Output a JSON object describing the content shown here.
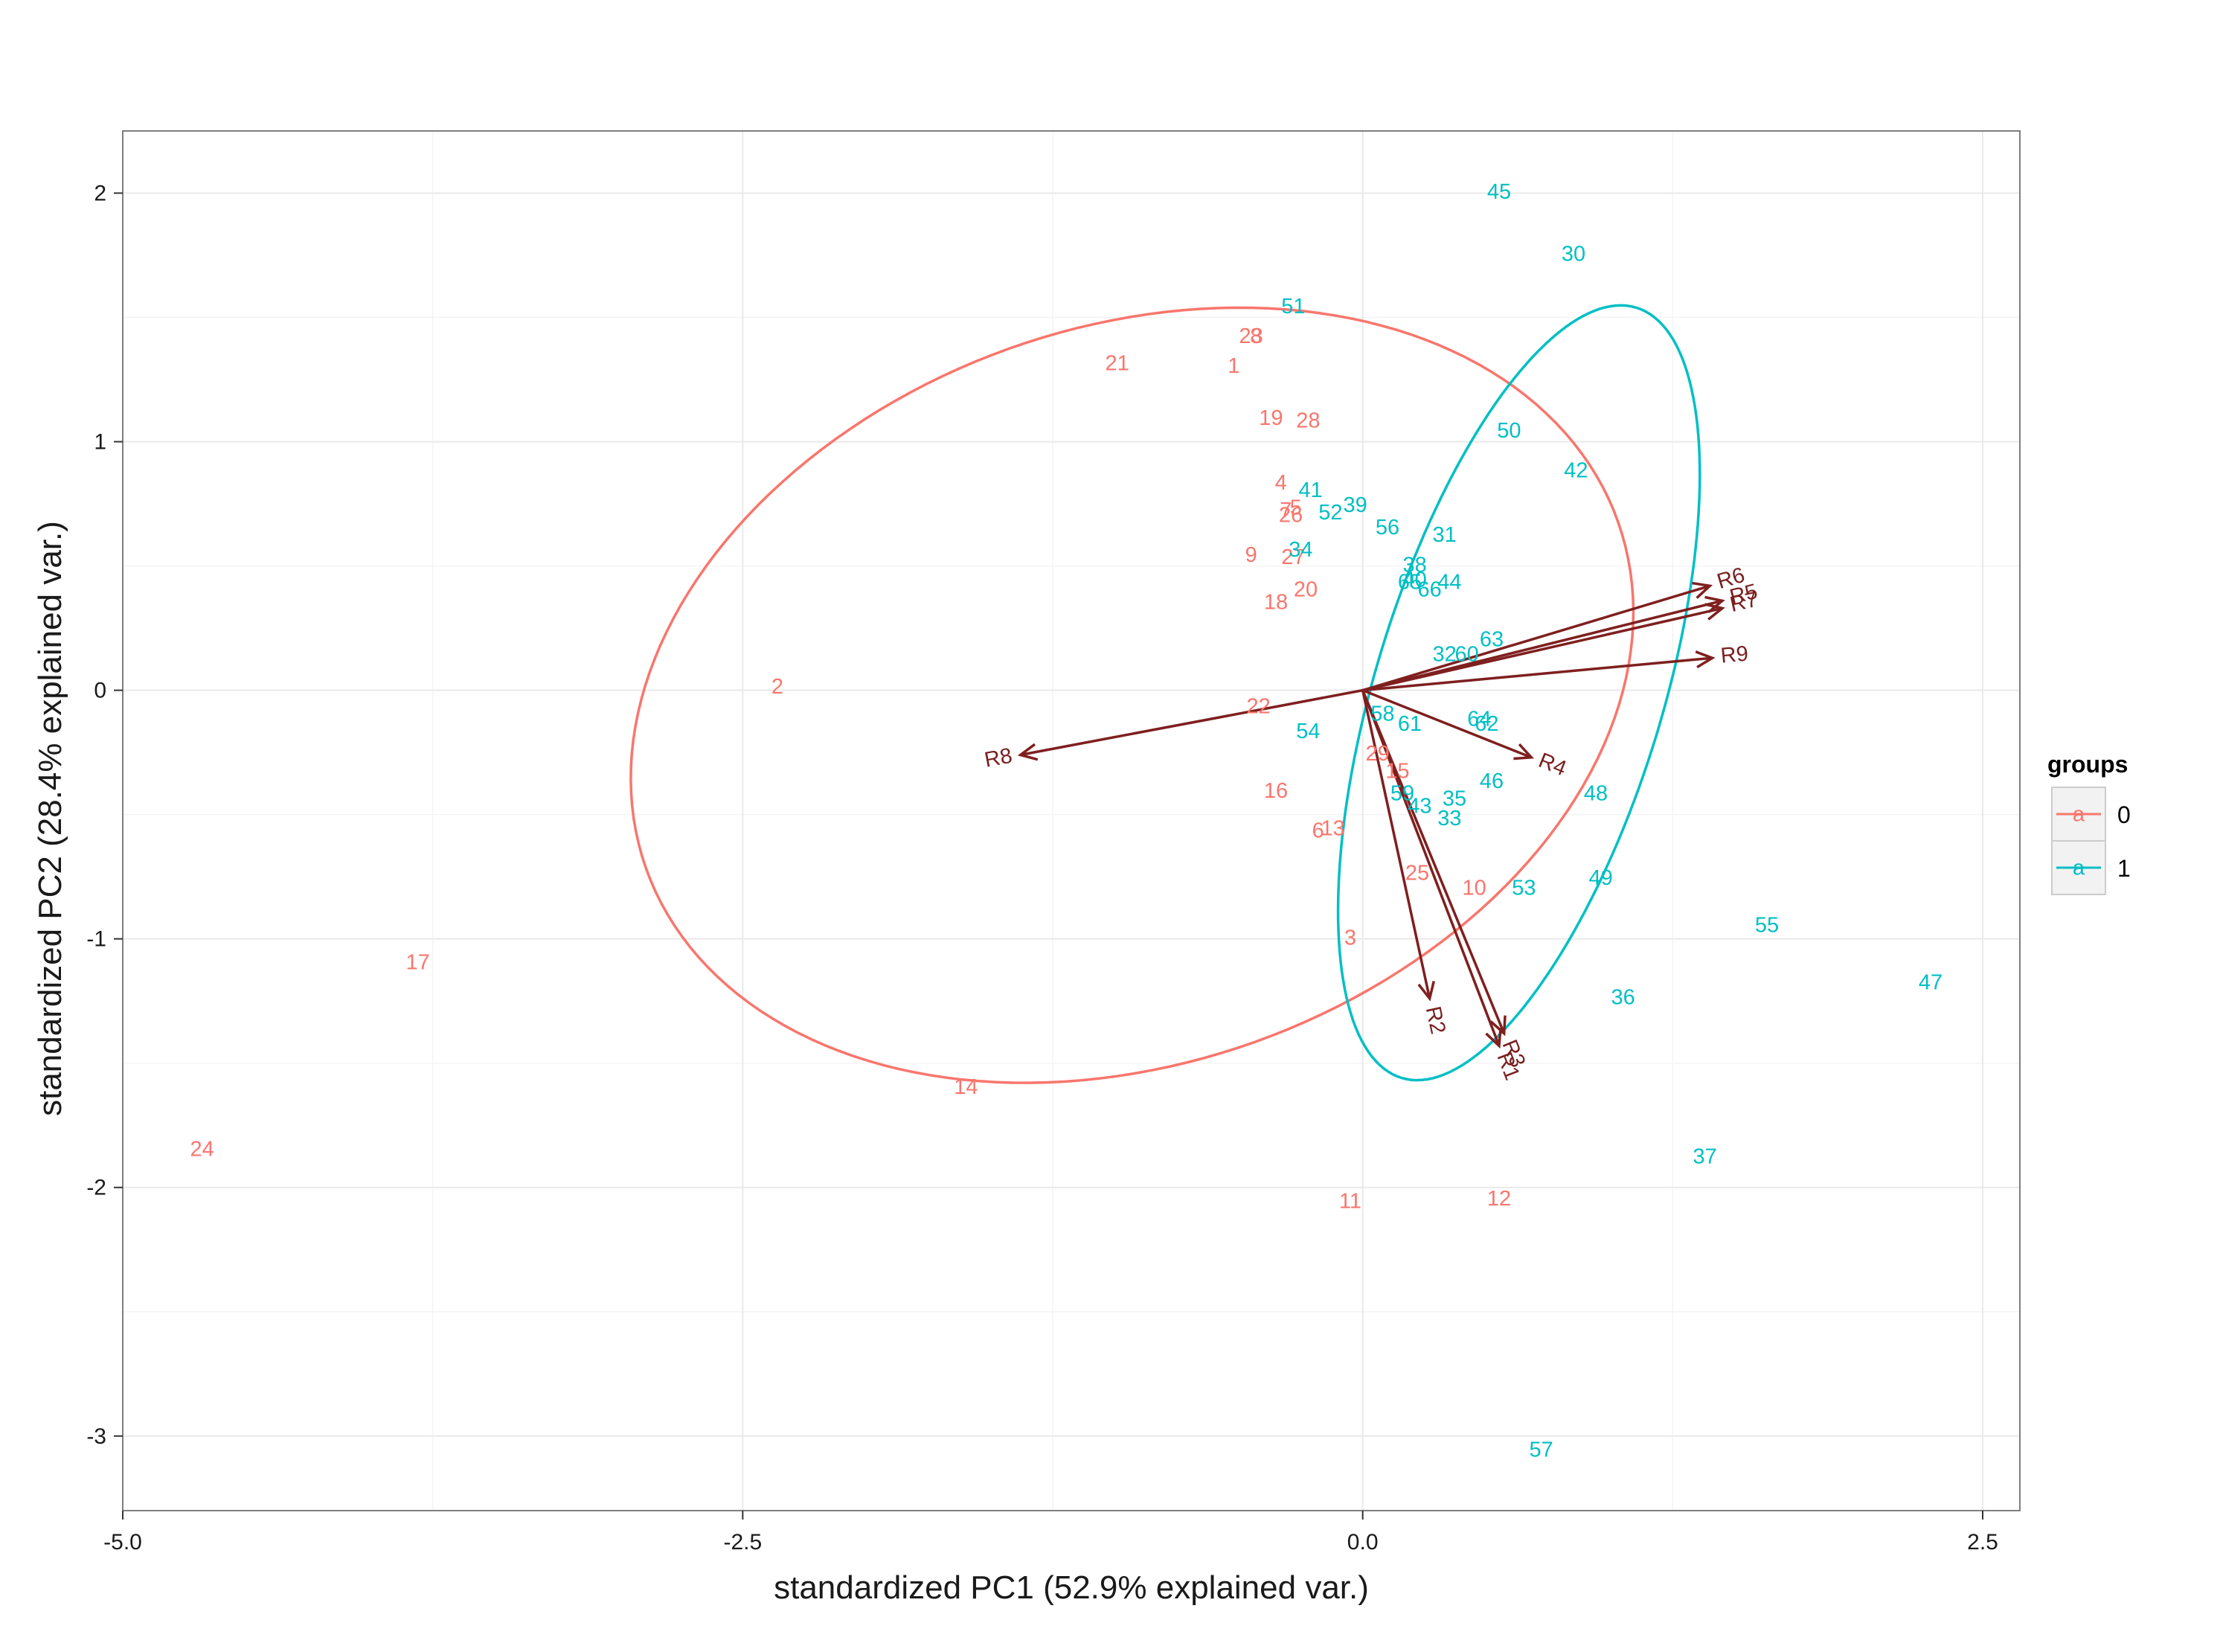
{
  "chart_data": {
    "type": "scatter",
    "xlabel": "standardized PC1 (52.9% explained var.)",
    "ylabel": "standardized PC2 (28.4% explained var.)",
    "xlim": [
      -5.0,
      2.65
    ],
    "ylim": [
      -3.3,
      2.25
    ],
    "x_ticks": [
      -5.0,
      -2.5,
      0.0,
      2.5
    ],
    "x_tick_labels": [
      "-5.0",
      "-2.5",
      "0.0",
      "2.5"
    ],
    "y_ticks": [
      -3,
      -2,
      -1,
      0,
      1,
      2
    ],
    "y_tick_labels": [
      "-3",
      "-2",
      "-1",
      "0",
      "1",
      "2"
    ],
    "grid": true,
    "legend": {
      "title": "groups",
      "position": "right",
      "key_glyph": "a",
      "entries": [
        {
          "label": "0",
          "color": "#F8766D"
        },
        {
          "label": "1",
          "color": "#00BFC4"
        }
      ]
    },
    "series": [
      {
        "name": "0",
        "color": "#F8766D",
        "points": [
          {
            "x": -0.52,
            "y": 1.3,
            "label": "1"
          },
          {
            "x": -2.36,
            "y": 0.01,
            "label": "2"
          },
          {
            "x": -0.05,
            "y": -1.0,
            "label": "3"
          },
          {
            "x": -0.33,
            "y": 0.83,
            "label": "4"
          },
          {
            "x": -0.27,
            "y": 0.73,
            "label": "5"
          },
          {
            "x": -0.18,
            "y": -0.57,
            "label": "6"
          },
          {
            "x": -0.31,
            "y": 0.72,
            "label": "7"
          },
          {
            "x": -0.43,
            "y": 1.42,
            "label": "8"
          },
          {
            "x": -0.45,
            "y": 0.54,
            "label": "9"
          },
          {
            "x": 0.45,
            "y": -0.8,
            "label": "10"
          },
          {
            "x": -0.05,
            "y": -2.06,
            "label": "11"
          },
          {
            "x": 0.55,
            "y": -2.05,
            "label": "12"
          },
          {
            "x": -0.12,
            "y": -0.56,
            "label": "13"
          },
          {
            "x": -1.6,
            "y": -1.6,
            "label": "14"
          },
          {
            "x": 0.14,
            "y": -0.33,
            "label": "15"
          },
          {
            "x": -0.35,
            "y": -0.41,
            "label": "16"
          },
          {
            "x": -3.81,
            "y": -1.1,
            "label": "17"
          },
          {
            "x": -0.35,
            "y": 0.35,
            "label": "18"
          },
          {
            "x": -0.37,
            "y": 1.09,
            "label": "19"
          },
          {
            "x": -0.23,
            "y": 0.4,
            "label": "20"
          },
          {
            "x": -0.99,
            "y": 1.31,
            "label": "21"
          },
          {
            "x": -0.42,
            "y": -0.07,
            "label": "22"
          },
          {
            "x": -0.45,
            "y": 1.42,
            "label": "23"
          },
          {
            "x": -4.68,
            "y": -1.85,
            "label": "24"
          },
          {
            "x": 0.22,
            "y": -0.74,
            "label": "25"
          },
          {
            "x": -0.29,
            "y": 0.7,
            "label": "26"
          },
          {
            "x": -0.28,
            "y": 0.53,
            "label": "27"
          },
          {
            "x": -0.22,
            "y": 1.08,
            "label": "28"
          },
          {
            "x": 0.06,
            "y": -0.26,
            "label": "29"
          }
        ]
      },
      {
        "name": "1",
        "color": "#00BFC4",
        "points": [
          {
            "x": 0.85,
            "y": 1.75,
            "label": "30"
          },
          {
            "x": 0.33,
            "y": 0.62,
            "label": "31"
          },
          {
            "x": 0.33,
            "y": 0.14,
            "label": "32"
          },
          {
            "x": 0.35,
            "y": -0.52,
            "label": "33"
          },
          {
            "x": -0.25,
            "y": 0.56,
            "label": "34"
          },
          {
            "x": 0.37,
            "y": -0.44,
            "label": "35"
          },
          {
            "x": 1.05,
            "y": -1.24,
            "label": "36"
          },
          {
            "x": 1.38,
            "y": -1.88,
            "label": "37"
          },
          {
            "x": 0.21,
            "y": 0.5,
            "label": "38"
          },
          {
            "x": -0.03,
            "y": 0.74,
            "label": "39"
          },
          {
            "x": 0.21,
            "y": 0.44,
            "label": "40"
          },
          {
            "x": -0.21,
            "y": 0.8,
            "label": "41"
          },
          {
            "x": 0.86,
            "y": 0.88,
            "label": "42"
          },
          {
            "x": 0.23,
            "y": -0.47,
            "label": "43"
          },
          {
            "x": 0.35,
            "y": 0.43,
            "label": "44"
          },
          {
            "x": 0.55,
            "y": 2.0,
            "label": "45"
          },
          {
            "x": 0.52,
            "y": -0.37,
            "label": "46"
          },
          {
            "x": 2.29,
            "y": -1.18,
            "label": "47"
          },
          {
            "x": 0.94,
            "y": -0.42,
            "label": "48"
          },
          {
            "x": 0.96,
            "y": -0.76,
            "label": "49"
          },
          {
            "x": 0.59,
            "y": 1.04,
            "label": "50"
          },
          {
            "x": -0.28,
            "y": 1.54,
            "label": "51"
          },
          {
            "x": -0.13,
            "y": 0.71,
            "label": "52"
          },
          {
            "x": 0.65,
            "y": -0.8,
            "label": "53"
          },
          {
            "x": -0.22,
            "y": -0.17,
            "label": "54"
          },
          {
            "x": 1.63,
            "y": -0.95,
            "label": "55"
          },
          {
            "x": 0.1,
            "y": 0.65,
            "label": "56"
          },
          {
            "x": 0.72,
            "y": -3.06,
            "label": "57"
          },
          {
            "x": 0.08,
            "y": -0.1,
            "label": "58"
          },
          {
            "x": 0.16,
            "y": -0.42,
            "label": "59"
          },
          {
            "x": 0.42,
            "y": 0.14,
            "label": "60"
          },
          {
            "x": 0.19,
            "y": -0.14,
            "label": "61"
          },
          {
            "x": 0.5,
            "y": -0.14,
            "label": "62"
          },
          {
            "x": 0.52,
            "y": 0.2,
            "label": "63"
          },
          {
            "x": 0.47,
            "y": -0.12,
            "label": "64"
          },
          {
            "x": 0.19,
            "y": 0.43,
            "label": "65"
          },
          {
            "x": 0.27,
            "y": 0.4,
            "label": "66"
          }
        ]
      }
    ],
    "arrows": {
      "color": "#7F1F1F",
      "vectors": [
        {
          "name": "R1",
          "x": 0.55,
          "y": -1.43
        },
        {
          "name": "R2",
          "x": 0.27,
          "y": -1.24
        },
        {
          "name": "R3",
          "x": 0.57,
          "y": -1.38
        },
        {
          "name": "R4",
          "x": 0.68,
          "y": -0.27
        },
        {
          "name": "R5",
          "x": 1.45,
          "y": 0.36
        },
        {
          "name": "R6",
          "x": 1.4,
          "y": 0.42
        },
        {
          "name": "R7",
          "x": 1.45,
          "y": 0.33
        },
        {
          "name": "R8",
          "x": -1.38,
          "y": -0.26
        },
        {
          "name": "R9",
          "x": 1.41,
          "y": 0.13
        }
      ]
    },
    "ellipses": [
      {
        "group": "0",
        "color": "#F8766D",
        "center": [
          -0.93,
          -0.02
        ],
        "radius_x": 2.08,
        "radius_y": 1.48,
        "rotation_deg": 19.6
      },
      {
        "group": "1",
        "color": "#00BFC4",
        "center": [
          0.63,
          -0.01
        ],
        "radius_x": 1.62,
        "radius_y": 0.58,
        "rotation_deg": 73
      }
    ]
  }
}
